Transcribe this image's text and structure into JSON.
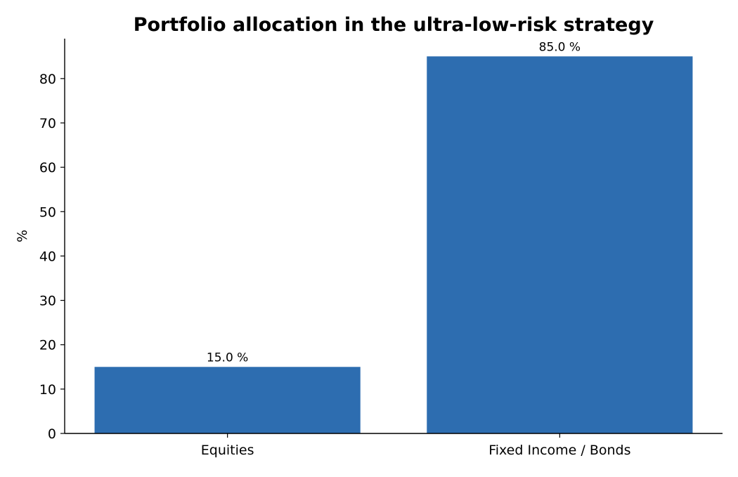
{
  "chart_data": {
    "type": "bar",
    "title": "Portfolio allocation in the ultra-low-risk strategy",
    "xlabel": "",
    "ylabel": "%",
    "categories": [
      "Equities",
      "Fixed Income / Bonds"
    ],
    "values": [
      15.0,
      85.0
    ],
    "value_labels": [
      "15.0 %",
      "85.0 %"
    ],
    "ylim": [
      0,
      89
    ],
    "yticks": [
      0,
      10,
      20,
      30,
      40,
      50,
      60,
      70,
      80
    ],
    "ytick_labels": [
      "0",
      "10",
      "20",
      "30",
      "40",
      "50",
      "60",
      "70",
      "80"
    ],
    "grid": false,
    "legend": "none",
    "bar_color": "#2d6db0",
    "axis_color": "#000000"
  }
}
